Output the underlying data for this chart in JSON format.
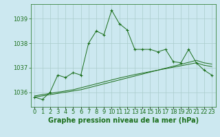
{
  "title": "Graphe pression niveau de la mer (hPa)",
  "background_color": "#cce8f0",
  "grid_color": "#aacccc",
  "line_color": "#1a6e1a",
  "x_labels": [
    "0",
    "1",
    "2",
    "3",
    "4",
    "5",
    "6",
    "7",
    "8",
    "9",
    "10",
    "11",
    "12",
    "13",
    "14",
    "15",
    "16",
    "17",
    "18",
    "19",
    "20",
    "21",
    "22",
    "23"
  ],
  "ylim": [
    1035.4,
    1039.6
  ],
  "yticks": [
    1036,
    1037,
    1038,
    1039
  ],
  "series1": [
    1035.8,
    1035.7,
    1036.0,
    1036.7,
    1036.6,
    1036.8,
    1036.7,
    1038.0,
    1038.5,
    1038.35,
    1039.35,
    1038.8,
    1038.55,
    1037.75,
    1037.75,
    1037.75,
    1037.65,
    1037.75,
    1037.25,
    1037.2,
    1037.75,
    1037.2,
    1036.9,
    1036.7
  ],
  "series2": [
    1035.8,
    1035.85,
    1035.9,
    1035.95,
    1036.0,
    1036.05,
    1036.1,
    1036.18,
    1036.26,
    1036.34,
    1036.42,
    1036.5,
    1036.58,
    1036.66,
    1036.74,
    1036.82,
    1036.9,
    1036.98,
    1037.06,
    1037.14,
    1037.22,
    1037.3,
    1037.2,
    1037.15
  ],
  "series3": [
    1035.85,
    1035.9,
    1035.95,
    1036.0,
    1036.05,
    1036.1,
    1036.18,
    1036.26,
    1036.34,
    1036.42,
    1036.5,
    1036.58,
    1036.65,
    1036.72,
    1036.78,
    1036.84,
    1036.9,
    1036.96,
    1037.02,
    1037.08,
    1037.14,
    1037.2,
    1037.1,
    1037.05
  ],
  "title_fontsize": 7,
  "tick_fontsize": 6,
  "fig_width": 3.2,
  "fig_height": 2.0,
  "dpi": 100
}
